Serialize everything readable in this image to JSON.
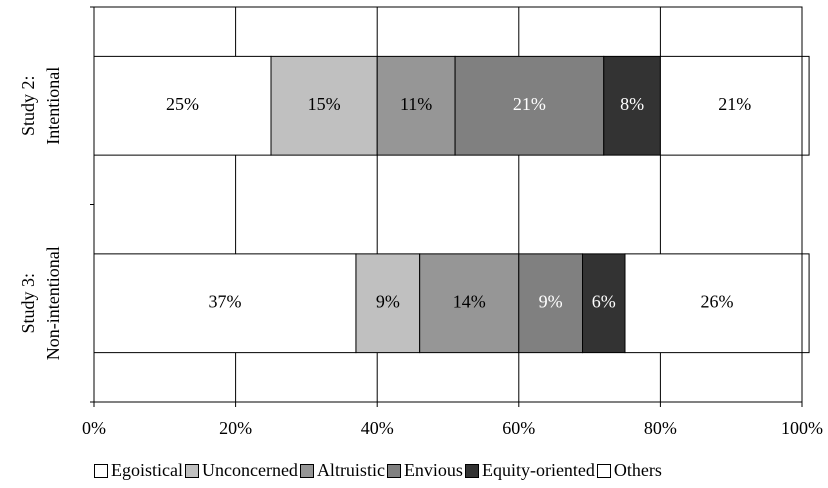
{
  "chart_data": {
    "type": "stacked-bar-horizontal",
    "categories": [
      [
        "Study 2:",
        "Intentional"
      ],
      [
        "Study 3:",
        "Non-intentional"
      ]
    ],
    "series": [
      {
        "name": "Egoistical",
        "color": "#ffffff",
        "label_color": "#000000",
        "values": [
          25,
          37
        ],
        "value_labels": [
          "25%",
          "37%"
        ]
      },
      {
        "name": "Unconcerned",
        "color": "#c0c0c0",
        "label_color": "#000000",
        "values": [
          15,
          9
        ],
        "value_labels": [
          "15%",
          "9%"
        ]
      },
      {
        "name": "Altruistic",
        "color": "#969696",
        "label_color": "#000000",
        "values": [
          11,
          14
        ],
        "value_labels": [
          "11%",
          "14%"
        ]
      },
      {
        "name": "Envious",
        "color": "#808080",
        "label_color": "#ffffff",
        "values": [
          21,
          9
        ],
        "value_labels": [
          "21%",
          "9%"
        ]
      },
      {
        "name": "Equity-oriented",
        "color": "#333333",
        "label_color": "#ffffff",
        "values": [
          8,
          6
        ],
        "value_labels": [
          "8%",
          "6%"
        ]
      },
      {
        "name": "Others",
        "color": "#ffffff",
        "label_color": "#000000",
        "values": [
          21,
          26
        ],
        "value_labels": [
          "21%",
          "26%"
        ]
      }
    ],
    "xlim": [
      0,
      100
    ],
    "xticks": [
      {
        "value": 0,
        "label": "0%"
      },
      {
        "value": 20,
        "label": "20%"
      },
      {
        "value": 40,
        "label": "40%"
      },
      {
        "value": 60,
        "label": "60%"
      },
      {
        "value": 80,
        "label": "80%"
      },
      {
        "value": 100,
        "label": "100%"
      }
    ],
    "grid": true,
    "legend": "bottom"
  }
}
